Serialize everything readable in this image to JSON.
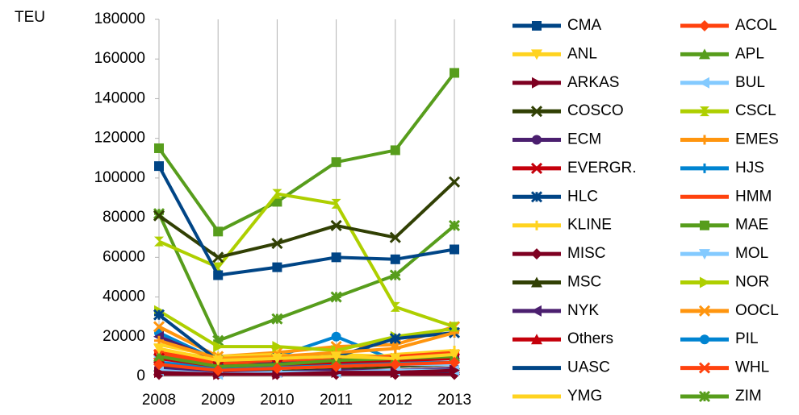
{
  "chart_data": {
    "type": "line",
    "y_label": "TEU",
    "categories": [
      "2008",
      "2009",
      "2010",
      "2011",
      "2012",
      "2013"
    ],
    "ylim": [
      0,
      180000
    ],
    "yticks": [
      0,
      20000,
      40000,
      60000,
      80000,
      100000,
      120000,
      140000,
      160000,
      180000
    ],
    "grid": "vertical",
    "legend": "right",
    "series": [
      {
        "name": "CMA",
        "color": "#004586",
        "marker": "square",
        "values": [
          106000,
          51000,
          55000,
          60000,
          59000,
          64000
        ]
      },
      {
        "name": "ACOL",
        "color": "#ff420e",
        "marker": "diamond",
        "values": [
          6000,
          3000,
          4000,
          5000,
          6000,
          7000
        ]
      },
      {
        "name": "ANL",
        "color": "#ffd320",
        "marker": "tri-down",
        "values": [
          14000,
          8000,
          9000,
          10000,
          9000,
          11000
        ]
      },
      {
        "name": "APL",
        "color": "#579d1c",
        "marker": "tri-up",
        "values": [
          10000,
          5000,
          6000,
          8000,
          9000,
          10000
        ]
      },
      {
        "name": "ARKAS",
        "color": "#7e0021",
        "marker": "tri-right",
        "values": [
          2000,
          1000,
          1000,
          2000,
          2000,
          3000
        ]
      },
      {
        "name": "BUL",
        "color": "#83caff",
        "marker": "tri-left",
        "values": [
          3000,
          1000,
          2000,
          2000,
          3000,
          3000
        ]
      },
      {
        "name": "COSCO",
        "color": "#314004",
        "marker": "x",
        "values": [
          81000,
          60000,
          67000,
          76000,
          70000,
          98000
        ]
      },
      {
        "name": "CSCL",
        "color": "#aecf00",
        "marker": "hourglass",
        "values": [
          68000,
          55000,
          92000,
          87000,
          35000,
          25000
        ]
      },
      {
        "name": "ECM",
        "color": "#4b1f6f",
        "marker": "circle",
        "values": [
          4000,
          2000,
          2000,
          3000,
          3000,
          4000
        ]
      },
      {
        "name": "EMES",
        "color": "#ff950e",
        "marker": "plus",
        "values": [
          18000,
          9000,
          10000,
          12000,
          14000,
          22000
        ]
      },
      {
        "name": "EVERGR.",
        "color": "#c5000b",
        "marker": "x",
        "values": [
          9000,
          5000,
          6000,
          7000,
          8000,
          9000
        ]
      },
      {
        "name": "HJS",
        "color": "#0084d1",
        "marker": "plus",
        "values": [
          7000,
          4000,
          5000,
          6000,
          7000,
          7000
        ]
      },
      {
        "name": "HLC",
        "color": "#004586",
        "marker": "star",
        "values": [
          31000,
          8000,
          9000,
          10000,
          19000,
          22000
        ]
      },
      {
        "name": "HMM",
        "color": "#ff420e",
        "marker": "bar",
        "values": [
          12000,
          7000,
          8000,
          9000,
          10000,
          12000
        ]
      },
      {
        "name": "KLINE",
        "color": "#ffd320",
        "marker": "plus",
        "values": [
          16000,
          10000,
          11000,
          8000,
          11000,
          13000
        ]
      },
      {
        "name": "MAE",
        "color": "#579d1c",
        "marker": "square",
        "values": [
          115000,
          73000,
          88000,
          108000,
          114000,
          153000
        ]
      },
      {
        "name": "MISC",
        "color": "#7e0021",
        "marker": "diamond",
        "values": [
          1000,
          1000,
          1000,
          1000,
          1000,
          1000
        ]
      },
      {
        "name": "MOL",
        "color": "#83caff",
        "marker": "tri-down",
        "values": [
          8000,
          4000,
          4000,
          5000,
          6000,
          6000
        ]
      },
      {
        "name": "MSC",
        "color": "#314004",
        "marker": "tri-up",
        "values": [
          5000,
          3000,
          3000,
          4000,
          5000,
          6000
        ]
      },
      {
        "name": "NOR",
        "color": "#aecf00",
        "marker": "tri-right",
        "values": [
          33000,
          15000,
          15000,
          13000,
          20000,
          24000
        ]
      },
      {
        "name": "NYK",
        "color": "#4b1f6f",
        "marker": "tri-left",
        "values": [
          20000,
          8000,
          7000,
          8000,
          9000,
          10000
        ]
      },
      {
        "name": "OOCL",
        "color": "#ff950e",
        "marker": "x",
        "values": [
          25000,
          10000,
          12000,
          15000,
          16000,
          25000
        ]
      },
      {
        "name": "Others",
        "color": "#c5000b",
        "marker": "tri-up",
        "values": [
          3000,
          2000,
          2000,
          3000,
          3000,
          4000
        ]
      },
      {
        "name": "PIL",
        "color": "#0084d1",
        "marker": "circle",
        "values": [
          22000,
          8000,
          10000,
          20000,
          8000,
          10000
        ]
      },
      {
        "name": "UASC",
        "color": "#004586",
        "marker": "bar",
        "values": [
          2000,
          1000,
          1000,
          1000,
          2000,
          2000
        ]
      },
      {
        "name": "WHL",
        "color": "#ff420e",
        "marker": "x",
        "values": [
          11000,
          6000,
          7000,
          9000,
          9000,
          11000
        ]
      },
      {
        "name": "YMG",
        "color": "#ffd320",
        "marker": "bar",
        "values": [
          13000,
          9000,
          10000,
          11000,
          10000,
          12000
        ]
      },
      {
        "name": "ZIM",
        "color": "#579d1c",
        "marker": "star",
        "values": [
          82000,
          18000,
          29000,
          40000,
          51000,
          76000
        ]
      }
    ]
  }
}
